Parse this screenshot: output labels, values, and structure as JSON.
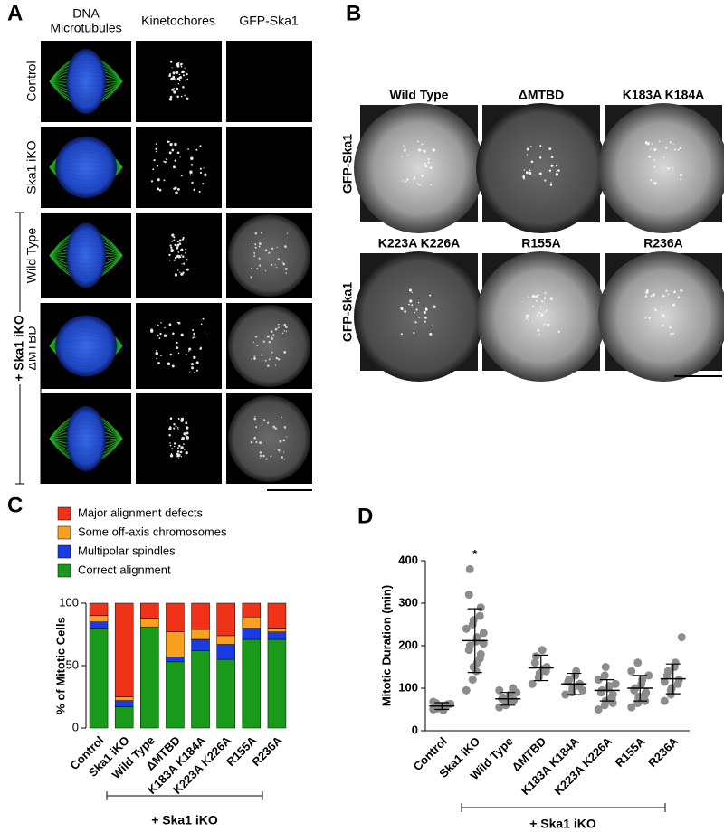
{
  "panel_a": {
    "label": "A",
    "channel_labels": [
      {
        "text": "DNA",
        "color": "#2a3cc8"
      },
      {
        "text": "Microtubules",
        "color": "#1aa01a"
      },
      {
        "text": "Kinetochores",
        "color": "#000000"
      },
      {
        "text": "GFP-Ska1",
        "color": "#000000"
      }
    ],
    "row_labels": [
      "Control",
      "Ska1 iKO",
      "Wild Type",
      "ΔMTBD"
    ],
    "group_label": "+ Ska1 iKO"
  },
  "panel_b": {
    "label": "B",
    "headers": [
      {
        "text": "Wild Type",
        "color": "#000000"
      },
      {
        "text": "ΔMTBD",
        "color": "#000000"
      },
      {
        "text": "K183A K184A",
        "color": "#2c3a8c"
      },
      {
        "text": "K223A K226A",
        "color": "#b066b8"
      },
      {
        "text": "R155A",
        "color": "#d0282c"
      },
      {
        "text": "R236A",
        "color": "#f0962a"
      }
    ],
    "row_labels": [
      "GFP-Ska1",
      "GFP-Ska1"
    ]
  },
  "chart_data": [
    {
      "type": "stacked_bar",
      "label": "C",
      "ylabel": "% of Mitotic Cells",
      "categories": [
        "Control",
        "Ska1 iKO",
        "Wild Type",
        "ΔMTBD",
        "K183A K184A",
        "K223A K226A",
        "R155A",
        "R236A"
      ],
      "category_colors": [
        "#000000",
        "#000000",
        "#000000",
        "#000000",
        "#2c3a8c",
        "#b066b8",
        "#d0282c",
        "#f0962a"
      ],
      "series": [
        {
          "name": "Correct alignment",
          "color": "#1a9a1a",
          "values": [
            80,
            17,
            81,
            53,
            62,
            55,
            71,
            71
          ]
        },
        {
          "name": "Multipolar spindles",
          "color": "#1a3ae6",
          "values": [
            5,
            5,
            0,
            4,
            9,
            12,
            9,
            6
          ]
        },
        {
          "name": "Some off-axis chromosomes",
          "color": "#f8a020",
          "values": [
            5,
            3,
            7,
            20,
            8,
            7,
            9,
            3
          ]
        },
        {
          "name": "Major alignment defects",
          "color": "#f03218",
          "values": [
            10,
            75,
            12,
            23,
            21,
            26,
            11,
            20
          ]
        }
      ],
      "ylim": [
        0,
        100
      ],
      "yticks": [
        0,
        50,
        100
      ],
      "group_label": "+ Ska1 iKO"
    },
    {
      "type": "dot",
      "label": "D",
      "ylabel": "Mitotic Duration (min)",
      "categories": [
        "Control",
        "Ska1 iKO",
        "Wild Type",
        "ΔMTBD",
        "K183A K184A",
        "K223A K226A",
        "R155A",
        "R236A"
      ],
      "category_colors": [
        "#000000",
        "#000000",
        "#000000",
        "#000000",
        "#2c3a8c",
        "#b066b8",
        "#d0282c",
        "#f0962a"
      ],
      "color": "#8c8c8c",
      "values": [
        [
          50,
          55,
          58,
          60,
          62,
          65,
          52,
          48,
          57,
          63,
          68,
          55
        ],
        [
          95,
          120,
          150,
          170,
          180,
          190,
          200,
          210,
          220,
          230,
          240,
          250,
          260,
          270,
          290,
          320,
          380,
          140,
          160,
          205
        ],
        [
          55,
          60,
          65,
          70,
          72,
          75,
          78,
          80,
          85,
          90,
          95,
          62,
          68,
          100
        ],
        [
          110,
          125,
          135,
          140,
          150,
          160,
          175,
          190,
          145
        ],
        [
          85,
          90,
          100,
          105,
          110,
          115,
          120,
          130,
          140,
          95
        ],
        [
          50,
          60,
          70,
          80,
          85,
          90,
          95,
          100,
          105,
          110,
          120,
          130,
          150,
          75,
          65
        ],
        [
          55,
          65,
          75,
          85,
          90,
          95,
          100,
          110,
          120,
          130,
          140,
          160,
          80,
          70
        ],
        [
          70,
          85,
          100,
          110,
          120,
          130,
          140,
          150,
          160,
          220,
          115,
          95
        ]
      ],
      "means": [
        58,
        212,
        75,
        148,
        110,
        95,
        100,
        122
      ],
      "sds": [
        8,
        75,
        15,
        30,
        25,
        25,
        30,
        35
      ],
      "annotation": "*",
      "annotation_index": 1,
      "ylim": [
        0,
        400
      ],
      "yticks": [
        0,
        100,
        200,
        300,
        400
      ],
      "group_label": "+ Ska1 iKO"
    }
  ]
}
